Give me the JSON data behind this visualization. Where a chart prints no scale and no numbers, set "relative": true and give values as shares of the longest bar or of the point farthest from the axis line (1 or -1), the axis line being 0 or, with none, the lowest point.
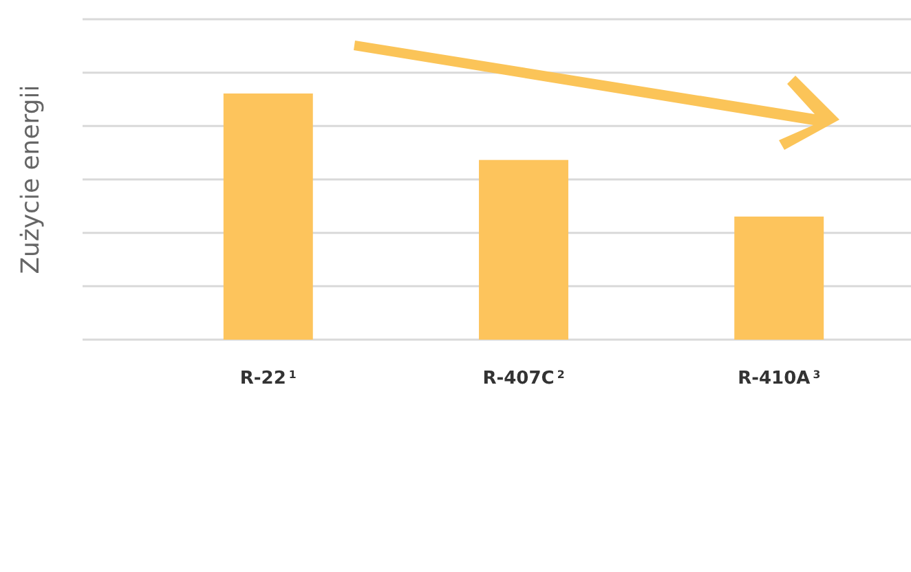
{
  "chart_data": {
    "type": "bar",
    "ylabel": "Zużycie energii",
    "relative": true,
    "grid": "y",
    "categories": [
      "R-22$^{1}$",
      "R-407C$^{2}$",
      "R-410A$^{3}$"
    ],
    "values": [
      1,
      0.73,
      0.5
    ],
    "color": "#fdc45c"
  }
}
